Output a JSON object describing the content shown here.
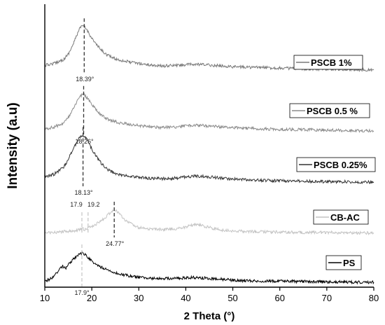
{
  "chart_data": {
    "type": "line",
    "xlabel": "2 Theta (°)",
    "ylabel": "Intensity (a.u)",
    "xlim": [
      10,
      80
    ],
    "xticks": [
      10,
      20,
      30,
      40,
      50,
      60,
      70,
      80
    ],
    "grid": false,
    "legend_placement": "right, one label per curve",
    "series": [
      {
        "name": "PSCB 1%",
        "color": "#7a7a7a",
        "x": [
          10,
          12,
          14,
          15,
          16,
          17,
          17.5,
          18,
          18.4,
          19,
          20,
          21,
          22,
          23,
          24,
          25,
          26,
          28,
          30,
          32,
          35,
          38,
          40,
          42,
          44,
          46,
          48,
          50,
          55,
          60,
          65,
          70,
          75,
          80
        ],
        "y": [
          0.07,
          0.1,
          0.16,
          0.24,
          0.38,
          0.56,
          0.63,
          0.66,
          0.65,
          0.6,
          0.48,
          0.38,
          0.3,
          0.24,
          0.2,
          0.17,
          0.15,
          0.12,
          0.1,
          0.08,
          0.06,
          0.07,
          0.08,
          0.085,
          0.08,
          0.07,
          0.06,
          0.05,
          0.04,
          0.03,
          0.02,
          0.015,
          0.01,
          0.0
        ],
        "peaks": [
          {
            "x": 18.39,
            "label": "18.39°"
          }
        ]
      },
      {
        "name": "PSCB 0.5 %",
        "color": "#8c8c8c",
        "x": [
          10,
          12,
          14,
          15,
          16,
          17,
          17.5,
          18,
          18.3,
          19,
          20,
          21,
          22,
          23,
          24,
          25,
          26,
          28,
          30,
          32,
          35,
          38,
          40,
          42,
          44,
          46,
          48,
          50,
          55,
          60,
          65,
          70,
          75,
          80
        ],
        "y": [
          0.03,
          0.06,
          0.12,
          0.2,
          0.32,
          0.46,
          0.52,
          0.55,
          0.55,
          0.5,
          0.4,
          0.31,
          0.24,
          0.19,
          0.16,
          0.14,
          0.12,
          0.1,
          0.08,
          0.07,
          0.05,
          0.06,
          0.08,
          0.085,
          0.08,
          0.07,
          0.06,
          0.05,
          0.035,
          0.025,
          0.02,
          0.012,
          0.008,
          0.0
        ],
        "peaks": [
          {
            "x": 18.26,
            "label": "18.26°"
          }
        ]
      },
      {
        "name": "PSCB 0.25%",
        "color": "#333333",
        "x": [
          10,
          12,
          14,
          15,
          16,
          17,
          17.5,
          18,
          18.1,
          19,
          20,
          21,
          22,
          23,
          24,
          25,
          26,
          28,
          30,
          32,
          35,
          38,
          40,
          42,
          44,
          46,
          48,
          50,
          55,
          60,
          65,
          70,
          75,
          80
        ],
        "y": [
          0.08,
          0.12,
          0.22,
          0.34,
          0.5,
          0.62,
          0.68,
          0.7,
          0.7,
          0.64,
          0.5,
          0.38,
          0.28,
          0.21,
          0.16,
          0.13,
          0.11,
          0.09,
          0.07,
          0.06,
          0.05,
          0.06,
          0.08,
          0.09,
          0.085,
          0.07,
          0.06,
          0.045,
          0.03,
          0.02,
          0.012,
          0.008,
          0.004,
          0.0
        ],
        "peaks": [
          {
            "x": 18.13,
            "label": "18.13°"
          }
        ]
      },
      {
        "name": "CB-AC",
        "color": "#c4c4c4",
        "x": [
          10,
          12,
          14,
          16,
          17,
          17.9,
          18.5,
          19.2,
          20,
          21,
          22,
          23,
          24,
          24.77,
          25.5,
          26,
          27,
          28,
          30,
          32,
          34,
          36,
          38,
          40,
          41,
          42,
          43,
          44,
          46,
          48,
          50,
          55,
          60,
          65,
          70,
          75,
          80
        ],
        "y": [
          0.0,
          0.02,
          0.04,
          0.06,
          0.08,
          0.12,
          0.1,
          0.14,
          0.18,
          0.24,
          0.32,
          0.42,
          0.55,
          0.6,
          0.56,
          0.48,
          0.36,
          0.26,
          0.15,
          0.11,
          0.1,
          0.1,
          0.12,
          0.16,
          0.2,
          0.22,
          0.21,
          0.18,
          0.12,
          0.08,
          0.06,
          0.04,
          0.03,
          0.02,
          0.02,
          0.01,
          0.01
        ],
        "peaks": [
          {
            "x": 17.9,
            "label": "17.9"
          },
          {
            "x": 19.2,
            "label": "19.2"
          },
          {
            "x": 24.77,
            "label": "24.77°"
          }
        ]
      },
      {
        "name": "PS",
        "color": "#000000",
        "x": [
          10,
          11,
          12,
          13,
          13.8,
          14.5,
          15.5,
          16.5,
          17.5,
          17.9,
          18.5,
          19.5,
          20.5,
          21.5,
          22.5,
          24,
          26,
          28,
          30,
          32,
          35,
          38,
          40,
          42,
          44,
          46,
          48,
          50,
          55,
          60,
          65,
          70,
          75,
          80
        ],
        "y": [
          0.04,
          0.08,
          0.18,
          0.35,
          0.46,
          0.4,
          0.58,
          0.72,
          0.82,
          0.84,
          0.8,
          0.66,
          0.54,
          0.46,
          0.4,
          0.32,
          0.24,
          0.18,
          0.14,
          0.12,
          0.1,
          0.11,
          0.13,
          0.135,
          0.12,
          0.1,
          0.08,
          0.06,
          0.04,
          0.03,
          0.02,
          0.01,
          0.005,
          0.0
        ],
        "peaks": [
          {
            "x": 17.9,
            "label": "17.9°"
          }
        ]
      }
    ]
  }
}
